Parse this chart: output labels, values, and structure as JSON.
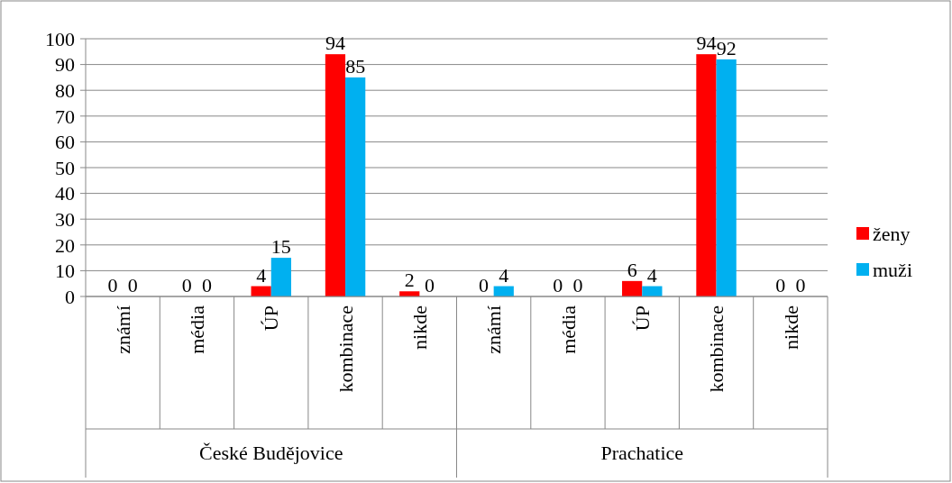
{
  "chart_data": {
    "type": "bar",
    "categories": [
      "známí",
      "média",
      "ÚP",
      "kombinace",
      "nikde",
      "známí",
      "média",
      "ÚP",
      "kombinace",
      "nikde"
    ],
    "series": [
      {
        "name": "ženy",
        "color": "#ff0000",
        "values": [
          0,
          0,
          4,
          94,
          2,
          0,
          0,
          6,
          94,
          0
        ]
      },
      {
        "name": "muži",
        "color": "#00b0f0",
        "values": [
          0,
          0,
          15,
          85,
          0,
          4,
          0,
          4,
          92,
          0
        ]
      }
    ],
    "annotations": [
      "České Budějovice",
      "Prachatice"
    ],
    "ylim": [
      0,
      100
    ],
    "yticks": [
      0,
      10,
      20,
      30,
      40,
      50,
      60,
      70,
      80,
      90,
      100
    ],
    "grid": "y",
    "legend": "right",
    "data_labels": true
  }
}
